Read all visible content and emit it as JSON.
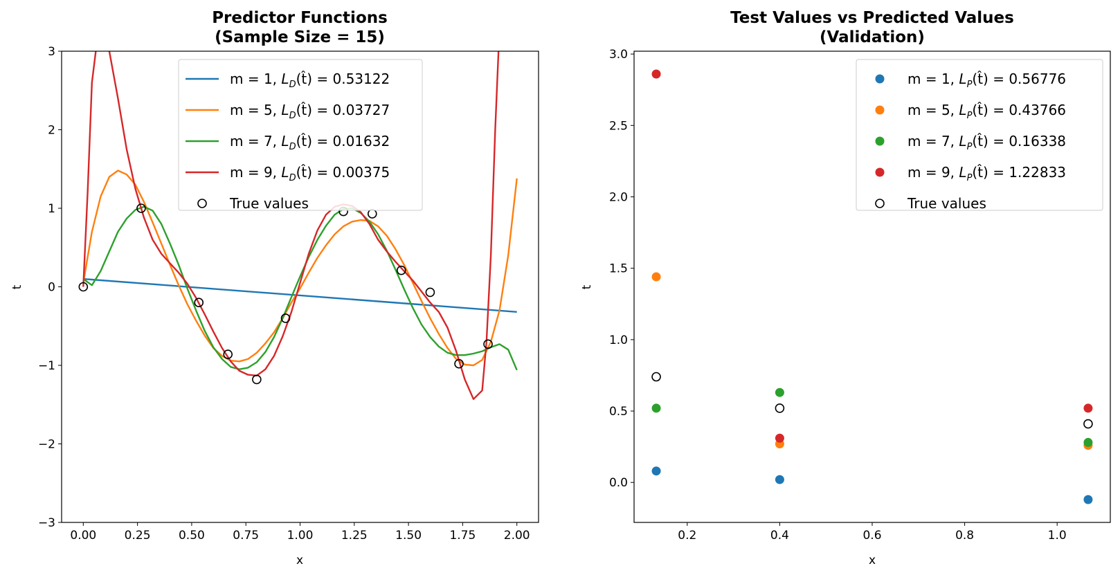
{
  "colors": {
    "m1": "#1f77b4",
    "m5": "#ff7f0e",
    "m7": "#2ca02c",
    "m9": "#d62728",
    "true_values": "#000000"
  },
  "chart_data": [
    {
      "type": "line",
      "title_line1": "Predictor Functions",
      "title_line2": "(Sample Size = 15)",
      "xlabel": "x",
      "ylabel": "t",
      "xlim": [
        -0.1,
        2.1
      ],
      "ylim": [
        -3,
        3
      ],
      "xticks": [
        "0.00",
        "0.25",
        "0.50",
        "0.75",
        "1.00",
        "1.25",
        "1.50",
        "1.75",
        "2.00"
      ],
      "xtick_values": [
        0,
        0.25,
        0.5,
        0.75,
        1.0,
        1.25,
        1.5,
        1.75,
        2.0
      ],
      "yticks": [
        "−3",
        "−2",
        "−1",
        "0",
        "1",
        "2",
        "3"
      ],
      "ytick_values": [
        -3,
        -2,
        -1,
        0,
        1,
        2,
        3
      ],
      "legend_position": "top-right",
      "series": [
        {
          "key": "m1",
          "legend_prefix": "m = 1, ",
          "legend_fn": "L",
          "legend_sub": "D",
          "legend_mid": "(t̂) = ",
          "legend_value": "0.53122",
          "x": [
            0,
            2.0
          ],
          "y": [
            0.1,
            -0.32
          ]
        },
        {
          "key": "m5",
          "legend_prefix": "m = 5, ",
          "legend_fn": "L",
          "legend_sub": "D",
          "legend_mid": "(t̂) = ",
          "legend_value": "0.03727",
          "x": [
            0,
            0.04,
            0.08,
            0.12,
            0.16,
            0.2,
            0.24,
            0.28,
            0.32,
            0.36,
            0.4,
            0.44,
            0.48,
            0.52,
            0.56,
            0.6,
            0.64,
            0.68,
            0.72,
            0.76,
            0.8,
            0.84,
            0.88,
            0.92,
            0.96,
            1.0,
            1.04,
            1.08,
            1.12,
            1.16,
            1.2,
            1.24,
            1.28,
            1.32,
            1.36,
            1.4,
            1.44,
            1.48,
            1.52,
            1.56,
            1.6,
            1.64,
            1.68,
            1.72,
            1.76,
            1.8,
            1.84,
            1.88,
            1.92,
            1.96,
            2.0
          ],
          "y": [
            0.05,
            0.7,
            1.15,
            1.4,
            1.48,
            1.43,
            1.3,
            1.08,
            0.82,
            0.55,
            0.28,
            0.02,
            -0.22,
            -0.43,
            -0.62,
            -0.78,
            -0.88,
            -0.94,
            -0.95,
            -0.92,
            -0.84,
            -0.72,
            -0.58,
            -0.4,
            -0.2,
            -0.02,
            0.18,
            0.37,
            0.53,
            0.67,
            0.77,
            0.83,
            0.85,
            0.84,
            0.77,
            0.65,
            0.48,
            0.28,
            0.05,
            -0.18,
            -0.4,
            -0.6,
            -0.78,
            -0.92,
            -0.99,
            -1.0,
            -0.93,
            -0.7,
            -0.3,
            0.4,
            1.38
          ]
        },
        {
          "key": "m7",
          "legend_prefix": "m = 7, ",
          "legend_fn": "L",
          "legend_sub": "D",
          "legend_mid": "(t̂) = ",
          "legend_value": "0.01632",
          "x": [
            0,
            0.04,
            0.08,
            0.12,
            0.16,
            0.2,
            0.24,
            0.28,
            0.32,
            0.36,
            0.4,
            0.44,
            0.48,
            0.52,
            0.56,
            0.6,
            0.64,
            0.68,
            0.72,
            0.76,
            0.8,
            0.84,
            0.88,
            0.92,
            0.96,
            1.0,
            1.04,
            1.08,
            1.12,
            1.16,
            1.2,
            1.24,
            1.28,
            1.32,
            1.36,
            1.4,
            1.44,
            1.48,
            1.52,
            1.56,
            1.6,
            1.64,
            1.68,
            1.72,
            1.76,
            1.8,
            1.84,
            1.88,
            1.92,
            1.96,
            2.0
          ],
          "y": [
            0.1,
            0.02,
            0.2,
            0.45,
            0.7,
            0.87,
            0.98,
            1.02,
            0.97,
            0.8,
            0.55,
            0.28,
            -0.02,
            -0.3,
            -0.56,
            -0.77,
            -0.92,
            -1.02,
            -1.05,
            -1.03,
            -0.96,
            -0.83,
            -0.64,
            -0.4,
            -0.13,
            0.13,
            0.38,
            0.6,
            0.78,
            0.92,
            0.99,
            1.0,
            0.94,
            0.83,
            0.67,
            0.46,
            0.22,
            -0.03,
            -0.27,
            -0.48,
            -0.64,
            -0.76,
            -0.84,
            -0.87,
            -0.87,
            -0.85,
            -0.82,
            -0.77,
            -0.73,
            -0.8,
            -1.06
          ]
        },
        {
          "key": "m9",
          "legend_prefix": "m = 9, ",
          "legend_fn": "L",
          "legend_sub": "D",
          "legend_mid": "(t̂) = ",
          "legend_value": "0.00375",
          "x": [
            0,
            0.02,
            0.04,
            0.06,
            0.08,
            0.12,
            0.16,
            0.2,
            0.24,
            0.28,
            0.32,
            0.36,
            0.4,
            0.44,
            0.48,
            0.52,
            0.56,
            0.6,
            0.64,
            0.68,
            0.72,
            0.76,
            0.8,
            0.84,
            0.88,
            0.92,
            0.96,
            1.0,
            1.04,
            1.08,
            1.12,
            1.16,
            1.2,
            1.24,
            1.28,
            1.32,
            1.36,
            1.4,
            1.44,
            1.48,
            1.52,
            1.56,
            1.6,
            1.64,
            1.68,
            1.72,
            1.76,
            1.8,
            1.84,
            1.86,
            1.88,
            1.9,
            1.92
          ],
          "y": [
            0.0,
            1.2,
            2.6,
            3.05,
            3.3,
            3.0,
            2.4,
            1.75,
            1.25,
            0.88,
            0.6,
            0.42,
            0.3,
            0.18,
            0.04,
            -0.14,
            -0.35,
            -0.57,
            -0.78,
            -0.95,
            -1.07,
            -1.12,
            -1.13,
            -1.05,
            -0.88,
            -0.63,
            -0.32,
            0.05,
            0.42,
            0.72,
            0.92,
            1.02,
            1.05,
            1.03,
            0.95,
            0.8,
            0.6,
            0.45,
            0.32,
            0.2,
            0.08,
            -0.06,
            -0.2,
            -0.32,
            -0.52,
            -0.82,
            -1.18,
            -1.43,
            -1.32,
            -0.7,
            0.4,
            2.0,
            3.3
          ]
        },
        {
          "key": "true_values",
          "legend_label": "True values",
          "marker": "open-circle",
          "x": [
            0.0,
            0.267,
            0.533,
            0.667,
            0.8,
            0.933,
            1.2,
            1.333,
            1.467,
            1.6,
            1.733,
            1.867
          ],
          "y": [
            0.0,
            1.0,
            -0.2,
            -0.86,
            -1.18,
            -0.4,
            0.96,
            0.93,
            0.21,
            -0.07,
            -0.98,
            -0.73
          ]
        }
      ]
    },
    {
      "type": "scatter",
      "title_line1": "Test Values vs Predicted Values",
      "title_line2": "(Validation)",
      "xlabel": "x",
      "ylabel": "t",
      "xlim": [
        0.085,
        1.115
      ],
      "ylim": [
        -0.28,
        3.02
      ],
      "xticks": [
        "0.2",
        "0.4",
        "0.6",
        "0.8",
        "1.0"
      ],
      "xtick_values": [
        0.2,
        0.4,
        0.6,
        0.8,
        1.0
      ],
      "yticks": [
        "0.0",
        "0.5",
        "1.0",
        "1.5",
        "2.0",
        "2.5",
        "3.0"
      ],
      "ytick_values": [
        0.0,
        0.5,
        1.0,
        1.5,
        2.0,
        2.5,
        3.0
      ],
      "legend_position": "top-right",
      "series": [
        {
          "key": "m1",
          "legend_prefix": "m = 1,  ",
          "legend_fn": "L",
          "legend_sub": "P",
          "legend_mid": "(t̂) = ",
          "legend_value": "0.56776",
          "x": [
            0.133,
            0.4,
            1.067
          ],
          "y": [
            0.08,
            0.02,
            -0.12
          ]
        },
        {
          "key": "m5",
          "legend_prefix": "m = 5,  ",
          "legend_fn": "L",
          "legend_sub": "P",
          "legend_mid": "(t̂) = ",
          "legend_value": "0.43766",
          "x": [
            0.133,
            0.4,
            1.067
          ],
          "y": [
            1.44,
            0.27,
            0.26
          ]
        },
        {
          "key": "m7",
          "legend_prefix": "m = 7,  ",
          "legend_fn": "L",
          "legend_sub": "P",
          "legend_mid": "(t̂) = ",
          "legend_value": "0.16338",
          "x": [
            0.133,
            0.4,
            1.067
          ],
          "y": [
            0.52,
            0.63,
            0.28
          ]
        },
        {
          "key": "m9",
          "legend_prefix": "m = 9,  ",
          "legend_fn": "L",
          "legend_sub": "P",
          "legend_mid": "(t̂) = ",
          "legend_value": "1.22833",
          "x": [
            0.133,
            0.4,
            1.067
          ],
          "y": [
            2.86,
            0.31,
            0.52
          ]
        },
        {
          "key": "true_values",
          "legend_label": "True values",
          "marker": "open-circle",
          "x": [
            0.133,
            0.4,
            1.067
          ],
          "y": [
            0.74,
            0.52,
            0.41
          ]
        }
      ]
    }
  ]
}
